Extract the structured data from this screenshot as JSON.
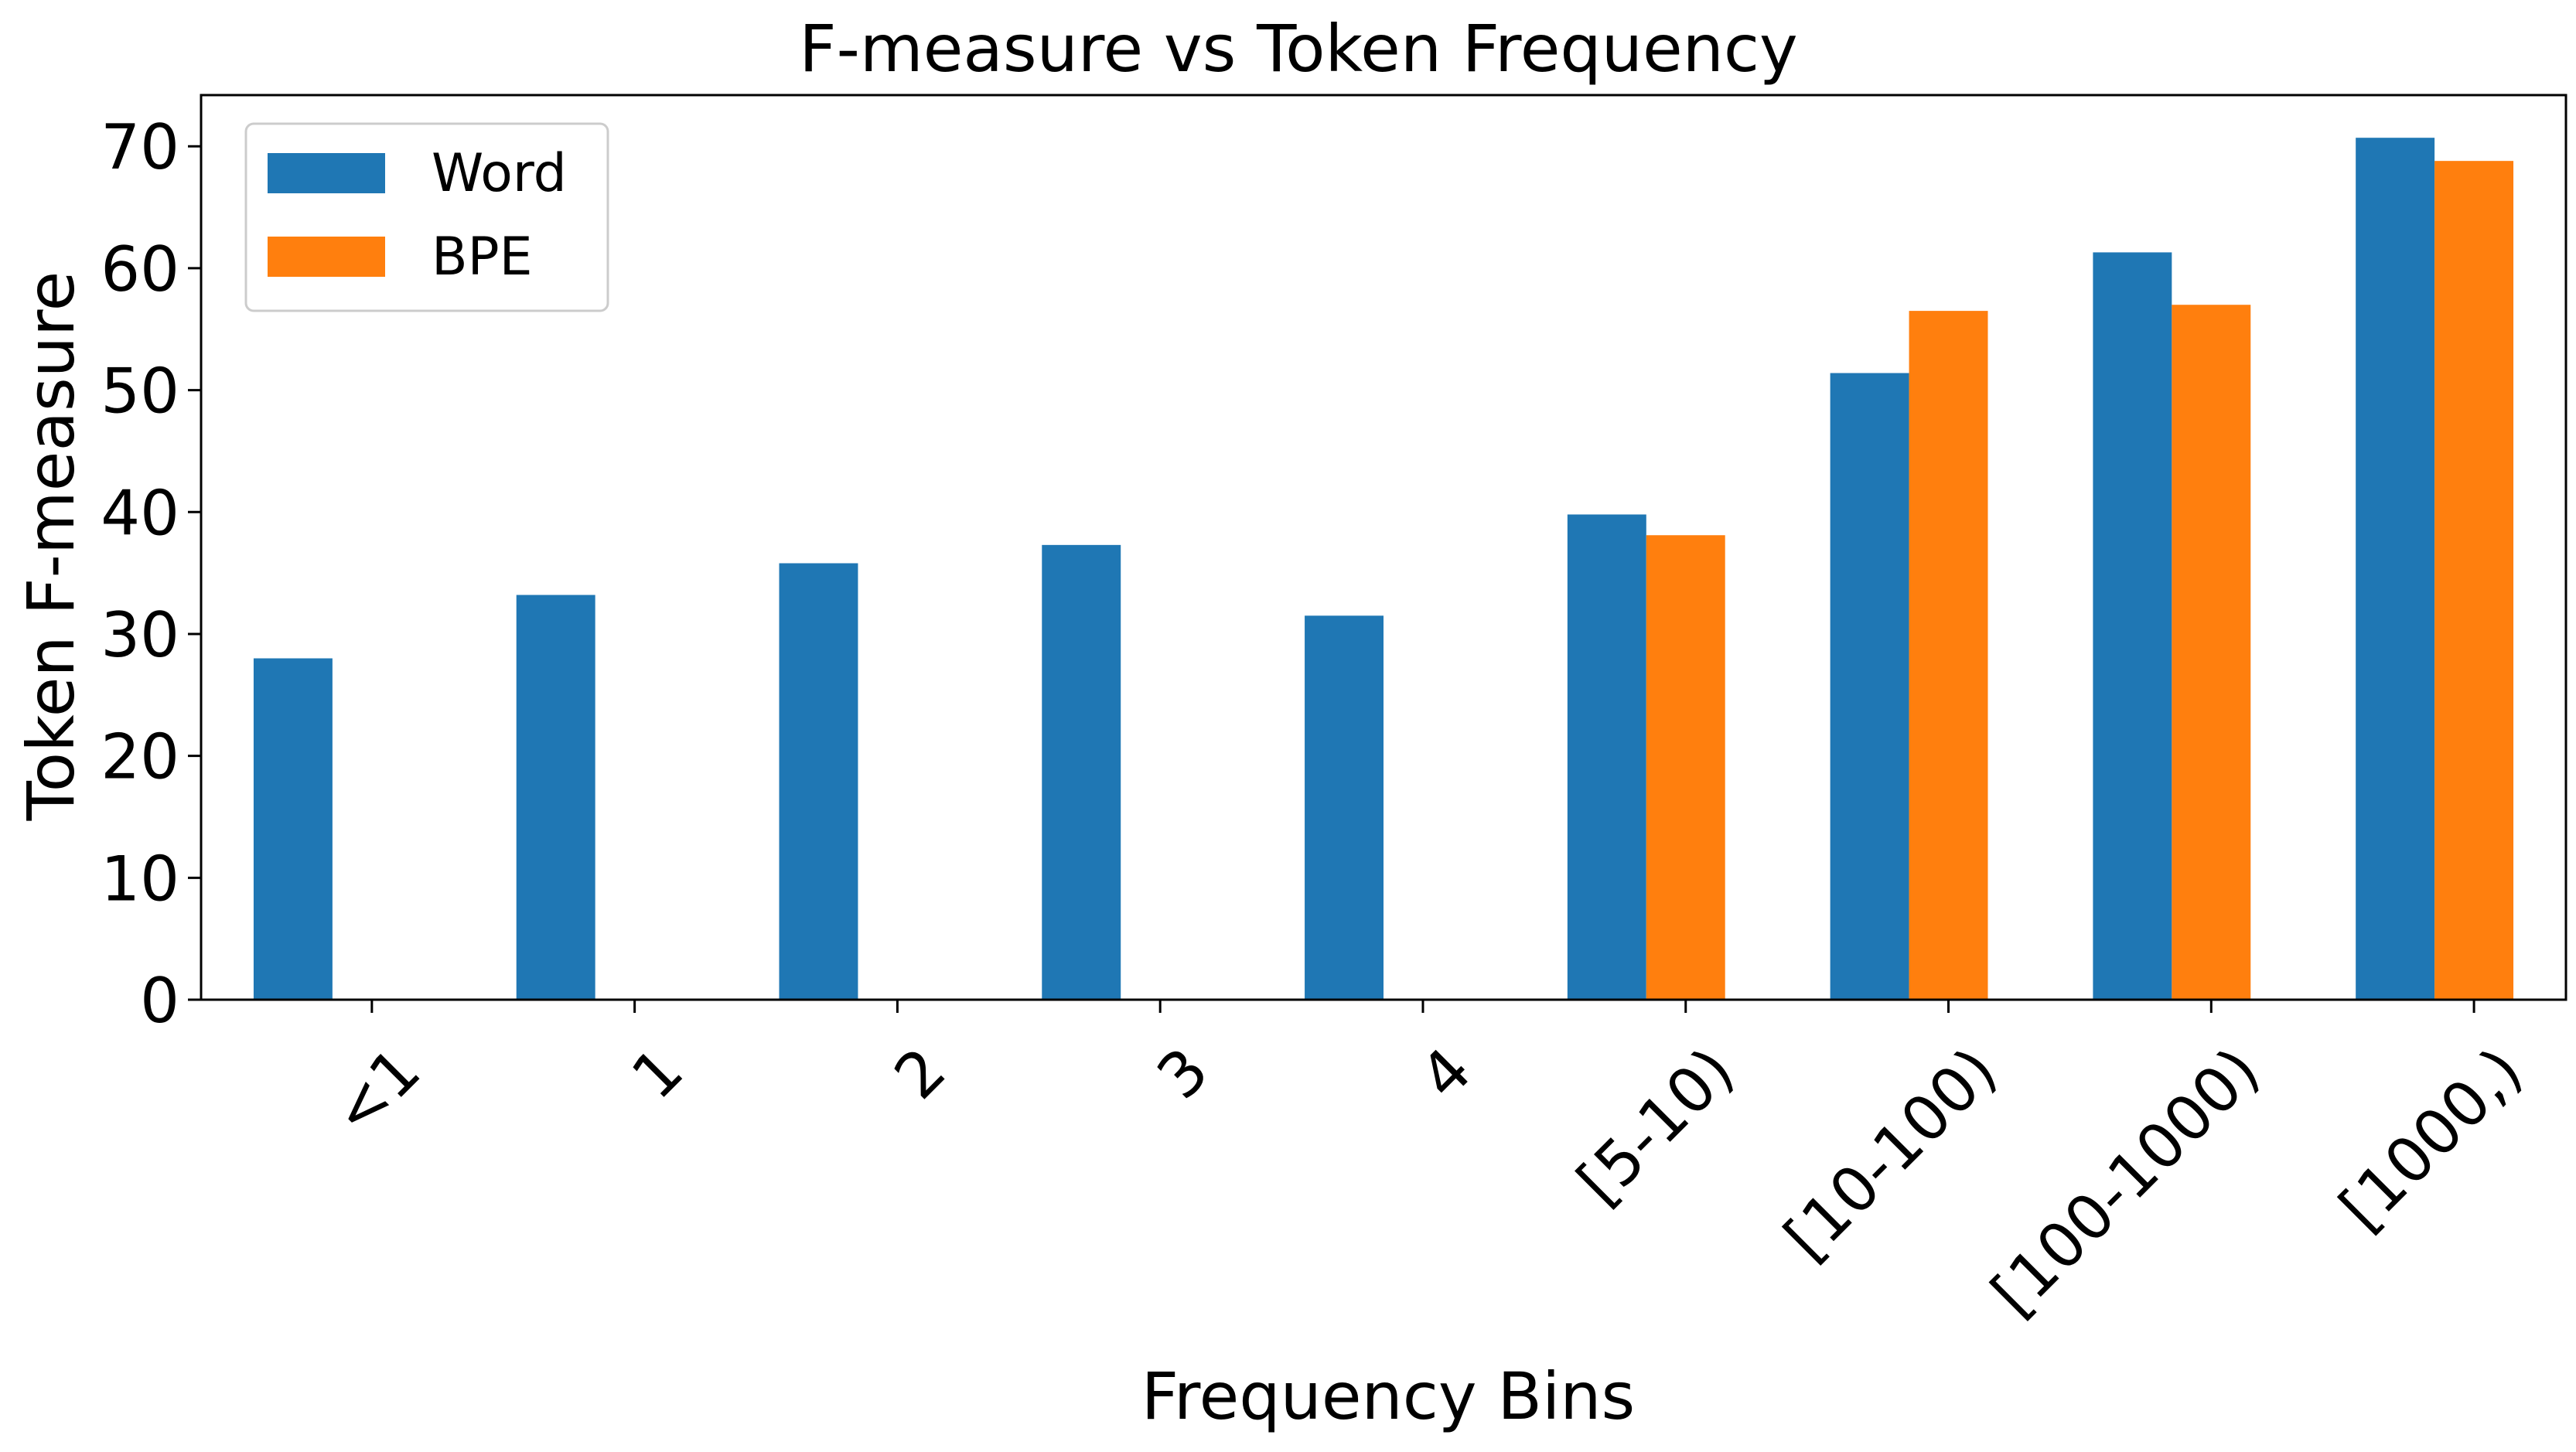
{
  "chart_data": {
    "type": "bar",
    "title": "F-measure vs Token Frequency",
    "xlabel": "Frequency Bins",
    "ylabel": "Token F-measure",
    "categories": [
      "<1",
      "1",
      "2",
      "3",
      "4",
      "[5-10)",
      "[10-100)",
      "[100-1000)",
      "[1000,)"
    ],
    "series": [
      {
        "name": "Word",
        "color": "#1f77b4",
        "values": [
          28.0,
          33.2,
          35.8,
          37.3,
          31.5,
          39.8,
          51.4,
          61.3,
          70.7
        ]
      },
      {
        "name": "BPE",
        "color": "#ff7f0e",
        "values": [
          null,
          null,
          null,
          null,
          null,
          38.1,
          56.5,
          57.0,
          68.8
        ]
      }
    ],
    "ylim": [
      0,
      74.2
    ],
    "yticks": [
      0,
      10,
      20,
      30,
      40,
      50,
      60,
      70
    ],
    "grid": false,
    "legend": "top-left"
  }
}
